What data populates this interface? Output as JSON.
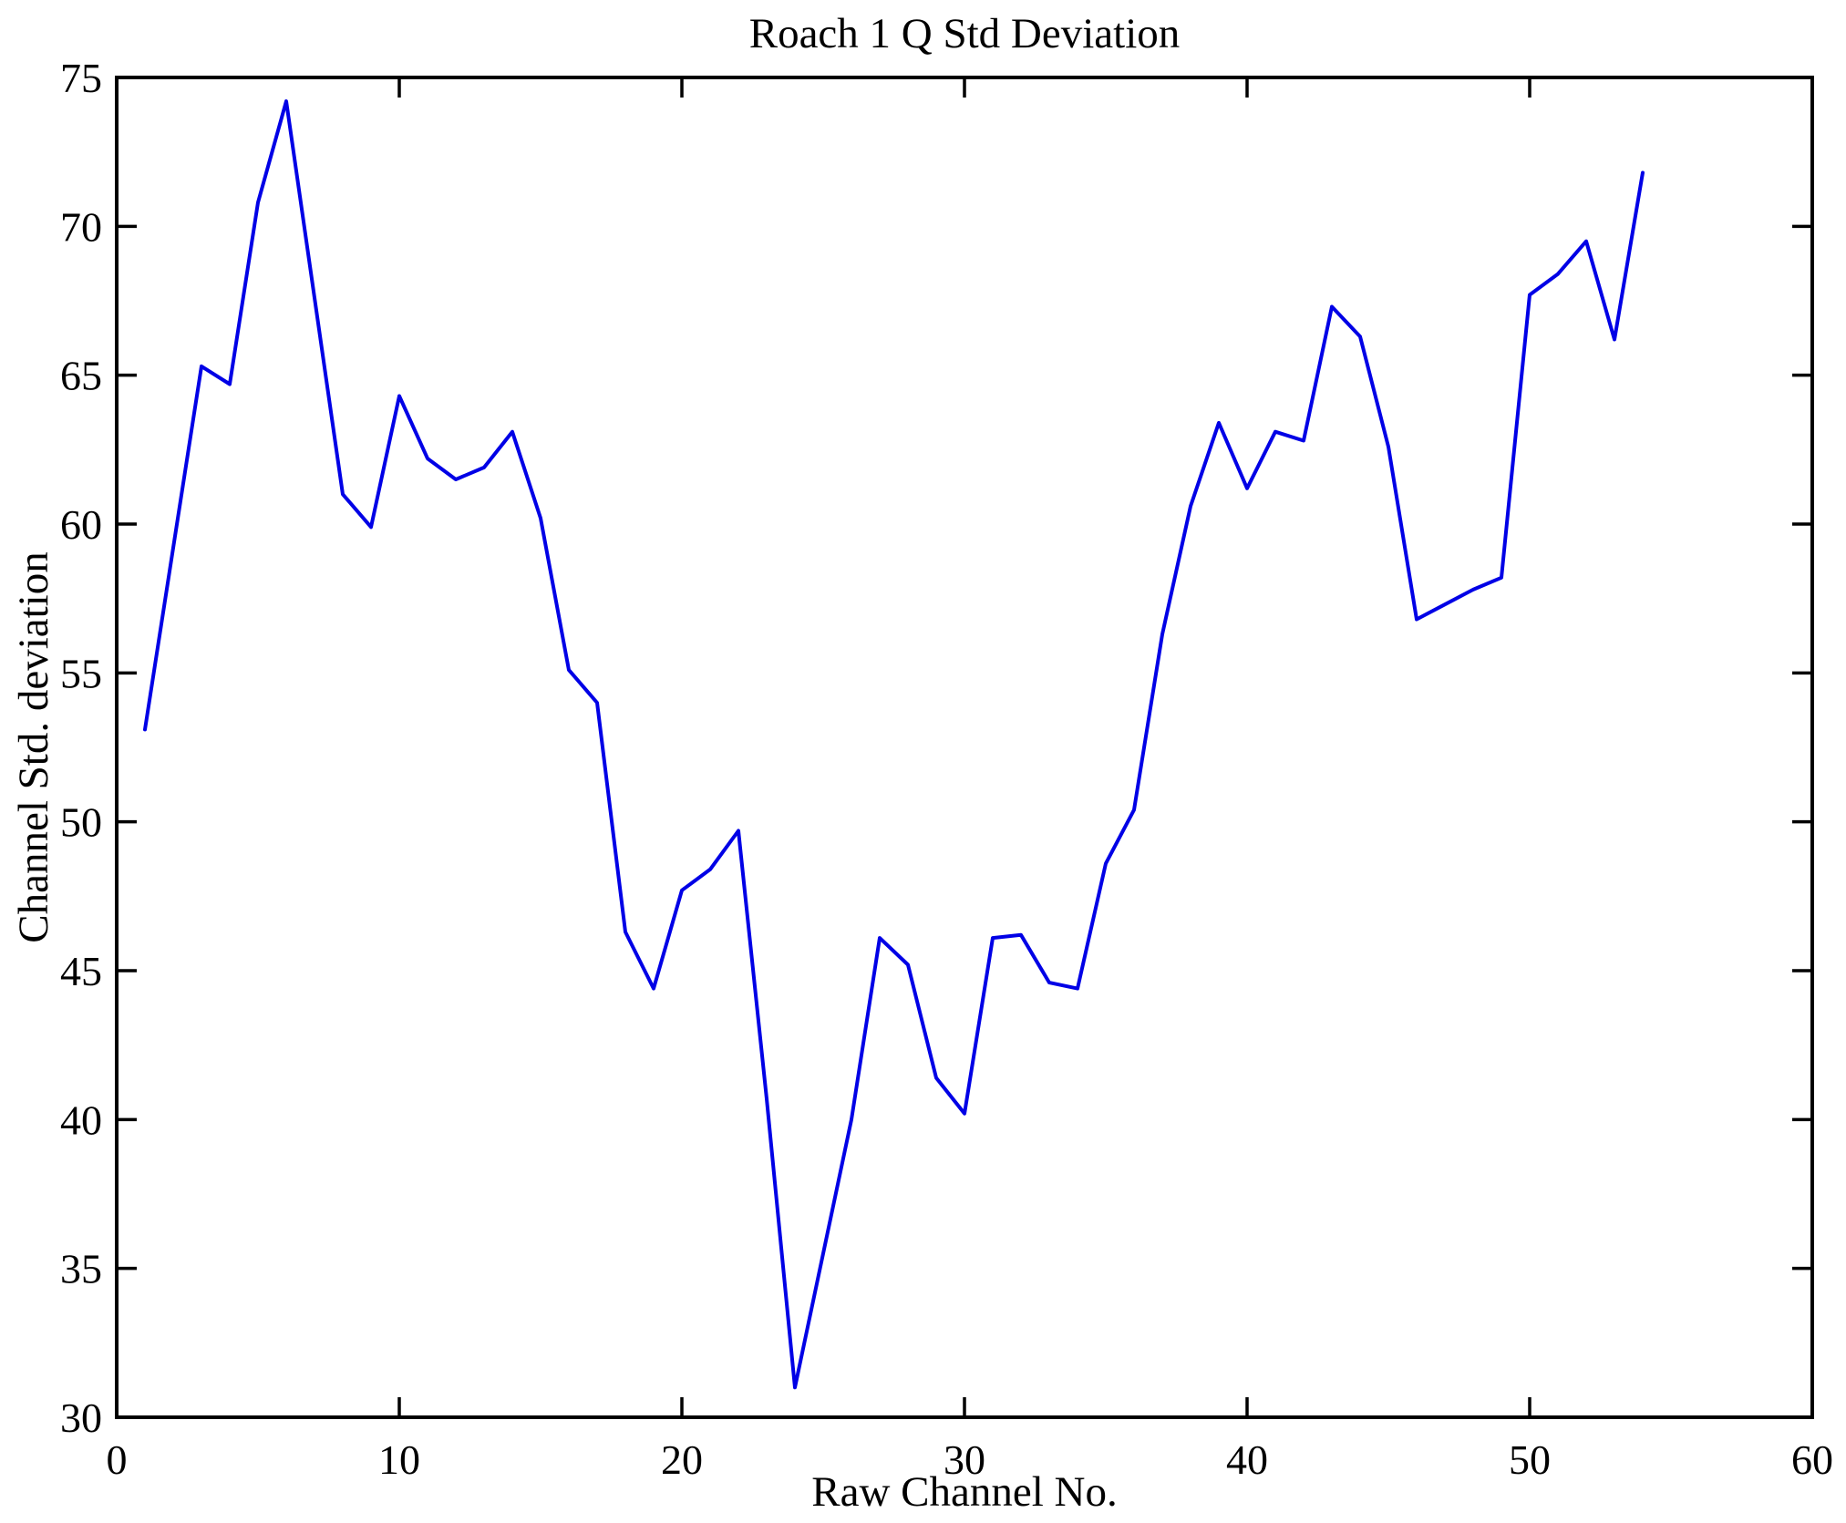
{
  "chart_data": {
    "type": "line",
    "title": "Roach 1 Q Std Deviation",
    "xlabel": "Raw Channel No.",
    "ylabel": "Channel Std. deviation",
    "xlim": [
      0,
      60
    ],
    "ylim": [
      30,
      75
    ],
    "x_ticks": [
      0,
      10,
      20,
      30,
      40,
      50,
      60
    ],
    "y_ticks": [
      30,
      35,
      40,
      45,
      50,
      55,
      60,
      65,
      70,
      75
    ],
    "grid": "off",
    "legend": "none",
    "line_color": "#0000e6",
    "axis_color": "#000000",
    "background_color": "#ffffff",
    "x": [
      1,
      2,
      3,
      4,
      5,
      6,
      7,
      8,
      9,
      10,
      11,
      12,
      13,
      14,
      15,
      16,
      17,
      18,
      19,
      20,
      21,
      22,
      23,
      24,
      25,
      26,
      27,
      28,
      29,
      30,
      31,
      32,
      33,
      34,
      35,
      36,
      37,
      38,
      39,
      40,
      41,
      42,
      43,
      44,
      45,
      46,
      47,
      48,
      49,
      50,
      51,
      52,
      53,
      54
    ],
    "y": [
      53.1,
      59.2,
      65.3,
      64.7,
      70.8,
      74.2,
      67.6,
      61.0,
      59.9,
      64.3,
      62.2,
      61.5,
      61.9,
      63.1,
      60.2,
      55.1,
      54.0,
      46.3,
      44.4,
      47.7,
      48.4,
      49.7,
      40.7,
      31.0,
      35.5,
      40.0,
      46.1,
      45.2,
      41.4,
      40.2,
      46.1,
      46.2,
      44.6,
      44.4,
      48.6,
      50.4,
      56.3,
      60.6,
      63.4,
      61.2,
      63.1,
      62.8,
      67.3,
      66.3,
      62.6,
      56.8,
      57.3,
      57.8,
      58.2,
      67.7,
      68.4,
      69.5,
      66.2,
      71.8
    ]
  }
}
